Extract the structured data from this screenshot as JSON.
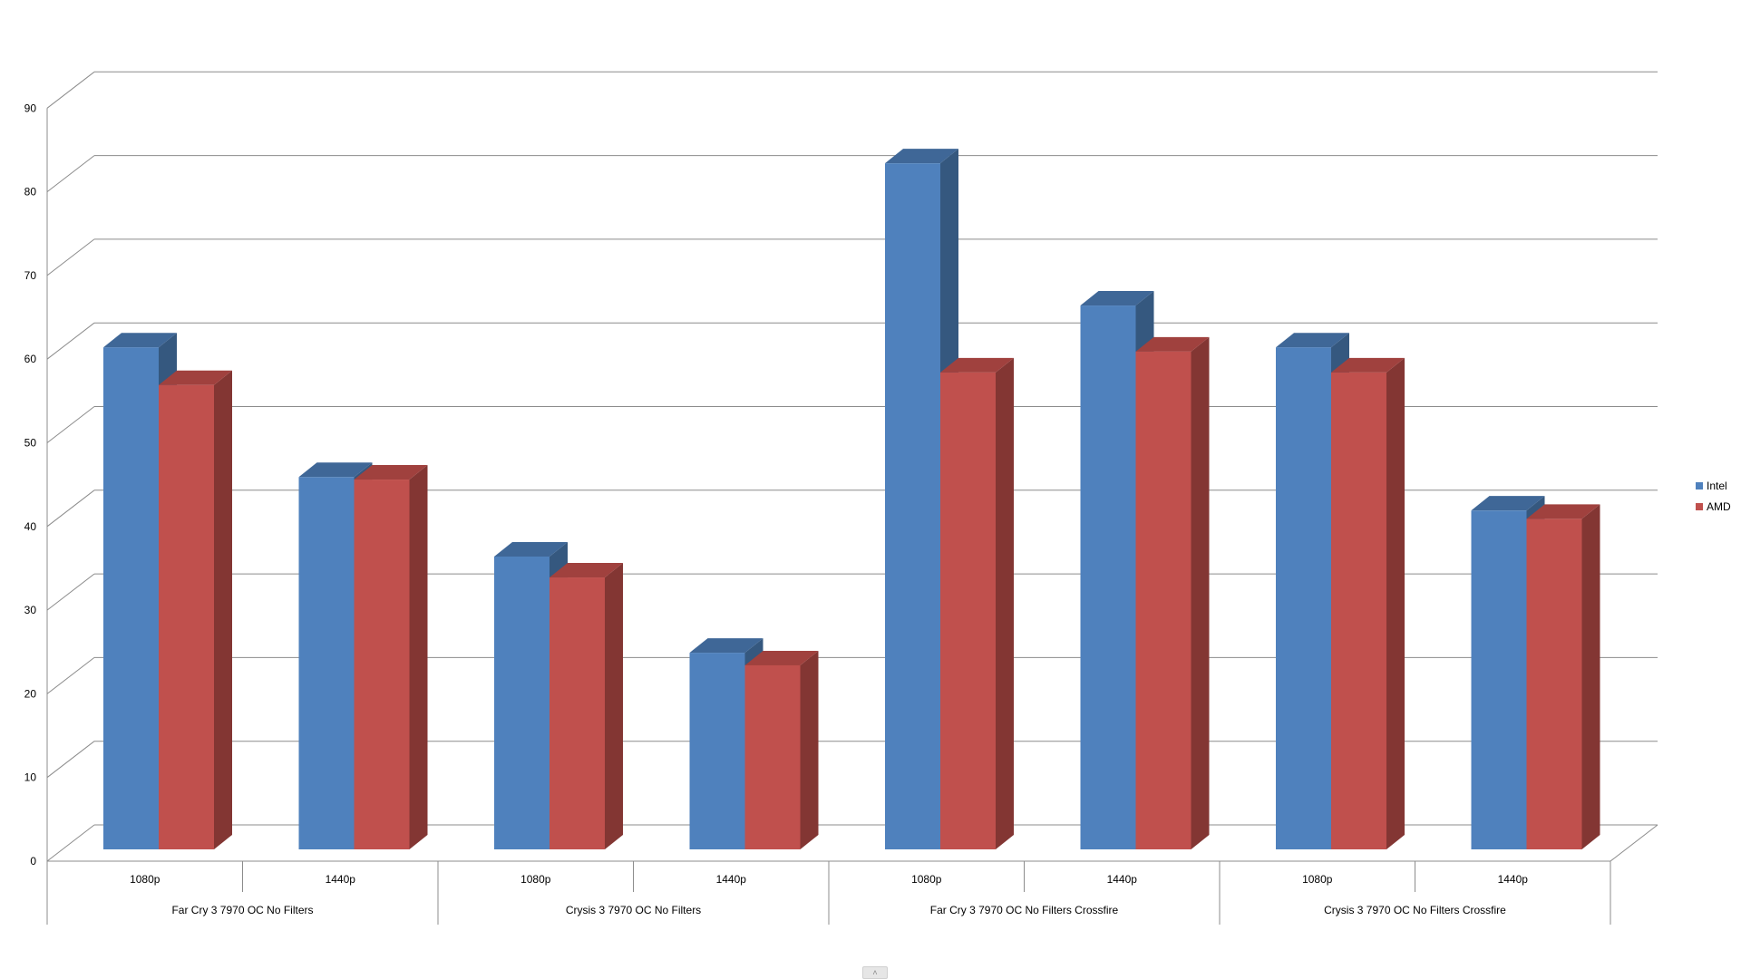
{
  "chart_data": {
    "type": "bar",
    "style": "3d-clustered-column",
    "groups": [
      {
        "label": "Far Cry 3 7970 OC No Filters",
        "categories": [
          "1080p",
          "1440p"
        ]
      },
      {
        "label": "Crysis 3 7970 OC No Filters",
        "categories": [
          "1080p",
          "1440p"
        ]
      },
      {
        "label": "Far Cry 3 7970 OC No Filters Crossfire",
        "categories": [
          "1080p",
          "1440p"
        ]
      },
      {
        "label": "Crysis 3 7970 OC No Filters Crossfire",
        "categories": [
          "1080p",
          "1440p"
        ]
      }
    ],
    "series": [
      {
        "name": "Intel",
        "color": "#4F81BD",
        "side_color": "#35587F",
        "top_color": "#3F6797",
        "values": [
          60,
          44.5,
          35,
          23.5,
          82,
          65,
          60,
          40.5
        ]
      },
      {
        "name": "AMD",
        "color": "#C0504D",
        "side_color": "#833633",
        "top_color": "#A0413E",
        "values": [
          55.5,
          44.2,
          32.5,
          22,
          57,
          59.5,
          57,
          39.5
        ]
      }
    ],
    "ylim": [
      0,
      90
    ],
    "yticks": [
      0,
      10,
      20,
      30,
      40,
      50,
      60,
      70,
      80,
      90
    ],
    "grid": true,
    "legend_position": "right",
    "title": "",
    "xlabel": "",
    "ylabel": ""
  },
  "ui": {
    "scroll_handle_glyph": "˄"
  }
}
